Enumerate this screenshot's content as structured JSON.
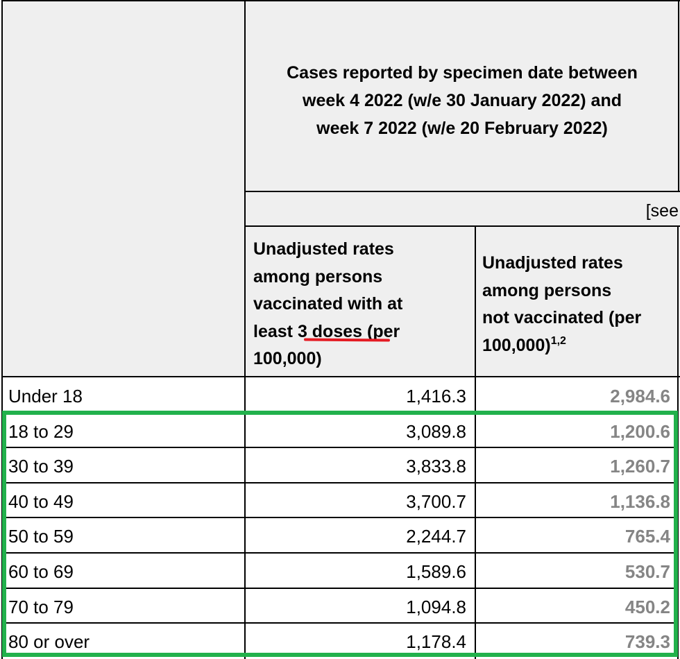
{
  "header": {
    "title_lines": [
      "Cases reported by specimen date between",
      "week 4 2022 (w/e 30 January 2022) and",
      "week 7 2022 (w/e 20 February 2022)"
    ],
    "see_text": "[see",
    "col_vaccinated_lines": [
      "Unadjusted rates",
      "among persons",
      "vaccinated with at",
      "least ",
      "3 doses",
      " (per",
      "100,000)"
    ],
    "col_unvaccinated_lines": [
      "Unadjusted rates",
      "among persons",
      "not vaccinated (per",
      "100,000)"
    ],
    "col_unvaccinated_sup": "1,2"
  },
  "rows": [
    {
      "age": "Under 18",
      "vaccinated": "1,416.3",
      "unvaccinated": "2,984.6"
    },
    {
      "age": "18 to 29",
      "vaccinated": "3,089.8",
      "unvaccinated": "1,200.6"
    },
    {
      "age": "30 to 39",
      "vaccinated": "3,833.8",
      "unvaccinated": "1,260.7"
    },
    {
      "age": "40 to 49",
      "vaccinated": "3,700.7",
      "unvaccinated": "1,136.8"
    },
    {
      "age": "50 to 59",
      "vaccinated": "2,244.7",
      "unvaccinated": "765.4"
    },
    {
      "age": "60 to 69",
      "vaccinated": "1,589.6",
      "unvaccinated": "530.7"
    },
    {
      "age": "70 to 79",
      "vaccinated": "1,094.8",
      "unvaccinated": "450.2"
    },
    {
      "age": "80 or over",
      "vaccinated": "1,178.4",
      "unvaccinated": "739.3"
    }
  ],
  "colors": {
    "header_bg": "#efefef",
    "highlight_box": "#22b14c",
    "underline": "#e41b23",
    "unvaccinated_text": "#858585"
  }
}
